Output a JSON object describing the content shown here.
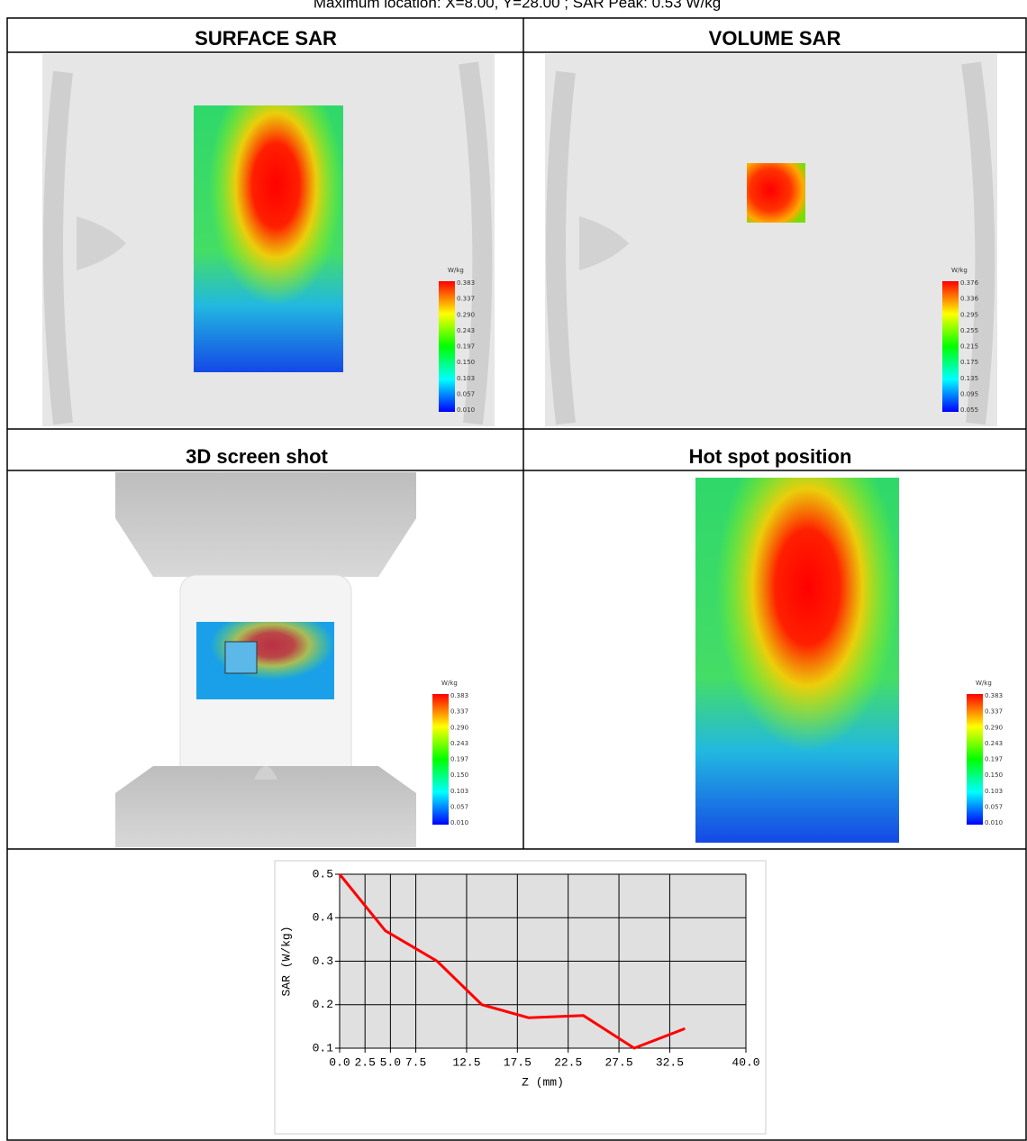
{
  "caption": "Maximum location: X=8.00, Y=28.00 ; SAR Peak: 0.53 W/kg",
  "panels": [
    {
      "title": "SURFACE SAR",
      "colorbar": {
        "unit": "W/kg",
        "labels": [
          "0.383",
          "0.337",
          "0.290",
          "0.243",
          "0.197",
          "0.150",
          "0.103",
          "0.057",
          "0.010"
        ]
      }
    },
    {
      "title": "VOLUME SAR",
      "colorbar": {
        "unit": "W/kg",
        "labels": [
          "0.376",
          "0.336",
          "0.295",
          "0.255",
          "0.215",
          "0.175",
          "0.135",
          "0.095",
          "0.055"
        ]
      }
    },
    {
      "title": "3D screen shot",
      "colorbar": {
        "unit": "W/kg",
        "labels": [
          "0.383",
          "0.337",
          "0.290",
          "0.243",
          "0.197",
          "0.150",
          "0.103",
          "0.057",
          "0.010"
        ]
      }
    },
    {
      "title": "Hot spot position",
      "colorbar": {
        "unit": "W/kg",
        "labels": [
          "0.383",
          "0.337",
          "0.290",
          "0.243",
          "0.197",
          "0.150",
          "0.103",
          "0.057",
          "0.010"
        ]
      }
    }
  ],
  "chart_data": {
    "type": "line",
    "x_label": "Z (mm)",
    "y_label": "SAR (W/kg)",
    "x": [
      0,
      4.5,
      9.6,
      14,
      18.6,
      24,
      29,
      34
    ],
    "series": [
      {
        "name": "SAR",
        "color": "#ff0000",
        "values": [
          0.5,
          0.37,
          0.3,
          0.2,
          0.17,
          0.175,
          0.1,
          0.145
        ]
      }
    ],
    "xlim": [
      0,
      40
    ],
    "ylim": [
      0.1,
      0.5
    ],
    "xticks": [
      {
        "value": 0,
        "label": "0.0"
      },
      {
        "value": 2.5,
        "label": "2.5"
      },
      {
        "value": 5,
        "label": "5.0"
      },
      {
        "value": 7.5,
        "label": "7.5"
      },
      {
        "value": 12.5,
        "label": "12.5"
      },
      {
        "value": 17.5,
        "label": "17.5"
      },
      {
        "value": 22.5,
        "label": "22.5"
      },
      {
        "value": 27.5,
        "label": "27.5"
      },
      {
        "value": 32.5,
        "label": "32.5"
      },
      {
        "value": 40,
        "label": "40.0"
      }
    ],
    "yticks": [
      0.1,
      0.2,
      0.3,
      0.4,
      0.5
    ],
    "grid": true
  }
}
